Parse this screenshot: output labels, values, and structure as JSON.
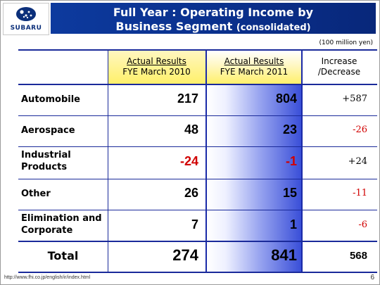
{
  "brand": {
    "logo_text": "SUBARU"
  },
  "title": {
    "line1": "Full Year : Operating Income by",
    "line2": "Business Segment",
    "line2_suffix": "(consolidated)"
  },
  "unit": "(100 million yen)",
  "columns": {
    "col1": {
      "line1": "Actual Results",
      "line2": "FYE March 2010"
    },
    "col2": {
      "line1": "Actual Results",
      "line2": "FYE March 2011"
    },
    "col3": {
      "line1": "Increase",
      "line2": "/Decrease"
    }
  },
  "rows": [
    {
      "label1": "Automobile",
      "label2": "",
      "fy2010": "217",
      "fy2011": "804",
      "change": "+587"
    },
    {
      "label1": "Aerospace",
      "label2": "",
      "fy2010": "48",
      "fy2011": "23",
      "change": "-26"
    },
    {
      "label1": "Industrial",
      "label2": "Products",
      "fy2010": "-24",
      "fy2011": "-1",
      "change": "+24"
    },
    {
      "label1": "Other",
      "label2": "",
      "fy2010": "26",
      "fy2011": "15",
      "change": "-11"
    },
    {
      "label1": "Elimination and",
      "label2": "Corporate",
      "fy2010": "7",
      "fy2011": "1",
      "change": "-6"
    }
  ],
  "total": {
    "label": "Total",
    "fy2010": "274",
    "fy2011": "841",
    "change": "568"
  },
  "footer": {
    "url": "http://www.fhi.co.jp/english/ir/index.html",
    "page": "6"
  },
  "colors": {
    "title_bg": "#0d3a9e",
    "table_lines": "#1a2a9a",
    "negative": "#d10000",
    "header_highlight": "#fff06a"
  }
}
